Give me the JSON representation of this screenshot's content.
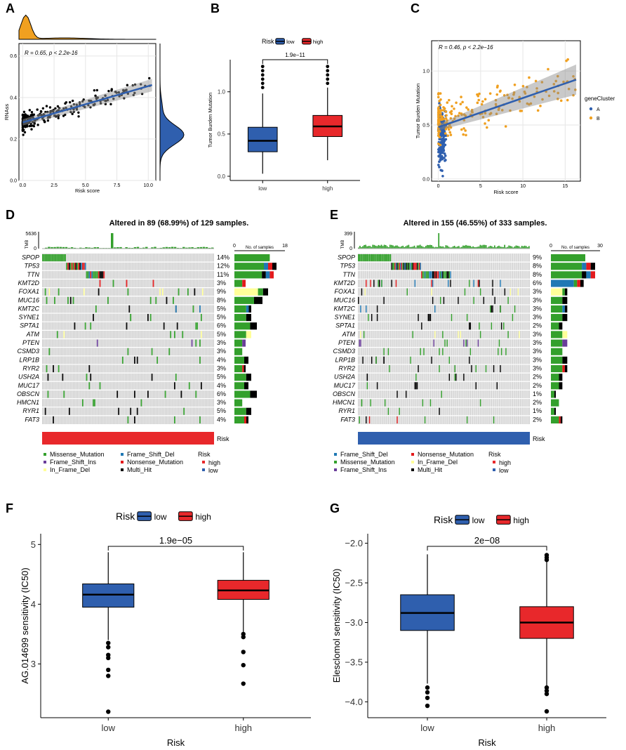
{
  "colors": {
    "low": "#2f5fae",
    "high": "#e8282b",
    "orange": "#f0a020",
    "missense": "#33a02c",
    "frameshift_del": "#1f78b4",
    "frameshift_ins": "#6a3d9a",
    "inframe_del": "#ffff99",
    "nonsense": "#e31a1c",
    "multihit": "#000000",
    "grey": "#d0d0d0"
  },
  "chart_data": [
    {
      "panel": "A",
      "type": "scatter",
      "xlabel": "Risk score",
      "ylabel": "RNAss",
      "annotation": "R = 0.65, p < 2.2e-16",
      "xticks": [
        "0.0",
        "2.5",
        "5.0",
        "7.5",
        "10.0"
      ],
      "xlim": [
        -0.3,
        10.6
      ],
      "yticks": [
        "0.0",
        "0.2",
        "0.4",
        "0.6"
      ],
      "ylim": [
        0,
        0.66
      ],
      "fit": {
        "x": [
          0,
          10.3
        ],
        "y": [
          0.28,
          0.46
        ]
      }
    },
    {
      "panel": "B",
      "type": "box",
      "legend_title": "Risk",
      "legend": [
        "low",
        "high"
      ],
      "ylabel": "Tumor Burden Mutation",
      "pvalue": "1.9e−11",
      "categories": [
        "low",
        "high"
      ],
      "yticks": [
        "0.0",
        "0.5",
        "1.0"
      ],
      "ylim": [
        -0.05,
        1.38
      ],
      "boxes": [
        {
          "name": "low",
          "whisker_low": 0.03,
          "q1": 0.29,
          "median": 0.42,
          "q3": 0.58,
          "whisker_high": 0.98,
          "outliers": [
            1.05,
            1.1,
            1.15,
            1.2,
            1.25,
            1.3
          ]
        },
        {
          "name": "high",
          "whisker_low": 0.19,
          "q1": 0.47,
          "median": 0.59,
          "q3": 0.72,
          "whisker_high": 1.05,
          "outliers": [
            1.1,
            1.15,
            1.2,
            1.25,
            1.3
          ]
        }
      ]
    },
    {
      "panel": "C",
      "type": "scatter",
      "xlabel": "Risk score",
      "ylabel": "Tumor Burden Mutation",
      "annotation": "R = 0.46, p < 2.2e−16",
      "legend_title": "geneCluster",
      "legend": [
        "A",
        "B"
      ],
      "xticks": [
        "0",
        "5",
        "10",
        "15"
      ],
      "xlim": [
        -0.8,
        16.8
      ],
      "yticks": [
        "0.0",
        "0.5",
        "1.0"
      ],
      "ylim": [
        -0.02,
        1.28
      ],
      "fit": {
        "x": [
          0,
          16.3
        ],
        "y": [
          0.48,
          0.92
        ]
      }
    },
    {
      "panel": "D",
      "type": "oncoplot",
      "title": "Altered in 89 (68.99%) of 129 samples.",
      "tmb_label": "TMB",
      "tmb_max": "5636",
      "tmb_min": "0",
      "samples_axis_label": "No. of samples",
      "samples_axis": [
        "0",
        "18"
      ],
      "genes": [
        "SPOP",
        "TP53",
        "TTN",
        "KMT2D",
        "FOXA1",
        "MUC16",
        "KMT2C",
        "SYNE1",
        "SPTA1",
        "ATM",
        "PTEN",
        "CSMD3",
        "LRP1B",
        "RYR2",
        "USH2A",
        "MUC17",
        "OBSCN",
        "HMCN1",
        "RYR1",
        "FAT3"
      ],
      "pct": [
        "14%",
        "12%",
        "11%",
        "3%",
        "9%",
        "8%",
        "5%",
        "5%",
        "6%",
        "5%",
        "3%",
        "3%",
        "4%",
        "3%",
        "5%",
        "4%",
        "6%",
        "3%",
        "5%",
        "4%"
      ],
      "risk_label": "Risk",
      "legend": [
        "Missense_Mutation",
        "Frame_Shift_Del",
        "Frame_Shift_Ins",
        "Nonsense_Mutation",
        "In_Frame_Del",
        "Multi_Hit"
      ],
      "legend_risk_title": "Risk",
      "legend_risk": [
        "high",
        "low"
      ]
    },
    {
      "panel": "E",
      "type": "oncoplot",
      "title": "Altered in 155 (46.55%) of 333 samples.",
      "tmb_label": "TMB",
      "tmb_max": "399",
      "tmb_min": "0",
      "samples_axis_label": "No. of samples",
      "samples_axis": [
        "0",
        "30"
      ],
      "genes": [
        "SPOP",
        "TP53",
        "TTN",
        "KMT2D",
        "FOXA1",
        "MUC16",
        "KMT2C",
        "SYNE1",
        "SPTA1",
        "ATM",
        "PTEN",
        "CSMD3",
        "LRP1B",
        "RYR2",
        "USH2A",
        "MUC17",
        "OBSCN",
        "HMCN1",
        "RYR1",
        "FAT3"
      ],
      "pct": [
        "9%",
        "8%",
        "8%",
        "6%",
        "3%",
        "3%",
        "3%",
        "3%",
        "2%",
        "3%",
        "3%",
        "3%",
        "3%",
        "3%",
        "2%",
        "2%",
        "1%",
        "2%",
        "1%",
        "2%"
      ],
      "risk_label": "Risk",
      "legend": [
        "Frame_Shift_Del",
        "Nonsense_Mutation",
        "Missense_Mutation",
        "In_Frame_Del",
        "Frame_Shift_Ins",
        "Multi_Hit"
      ],
      "legend_risk_title": "Risk",
      "legend_risk": [
        "high",
        "low"
      ]
    },
    {
      "panel": "F",
      "type": "box",
      "legend_title": "Risk",
      "legend": [
        "low",
        "high"
      ],
      "xlabel": "Risk",
      "ylabel": "AG.014699 sensitivity (IC50)",
      "pvalue": "1.9e−05",
      "categories": [
        "low",
        "high"
      ],
      "yticks": [
        "3",
        "4",
        "5"
      ],
      "ylim": [
        2.1,
        5.18
      ],
      "boxes": [
        {
          "name": "low",
          "whisker_low": 3.4,
          "q1": 3.95,
          "median": 4.16,
          "q3": 4.34,
          "whisker_high": 4.87,
          "outliers": [
            3.35,
            3.28,
            3.15,
            3.1,
            2.9,
            2.8,
            2.2
          ]
        },
        {
          "name": "high",
          "whisker_low": 3.5,
          "q1": 4.08,
          "median": 4.23,
          "q3": 4.4,
          "whisker_high": 4.87,
          "outliers": [
            3.5,
            3.45,
            3.2,
            2.98,
            2.67
          ]
        }
      ]
    },
    {
      "panel": "G",
      "type": "box",
      "legend_title": "Risk",
      "legend": [
        "low",
        "high"
      ],
      "xlabel": "Risk",
      "ylabel": "Elesclomol sensitivity (IC50)",
      "pvalue": "2e−08",
      "categories": [
        "low",
        "high"
      ],
      "yticks": [
        "−2.0",
        "−2.5",
        "−3.0",
        "−3.5",
        "−4.0"
      ],
      "ylim": [
        -4.2,
        -1.88
      ],
      "boxes": [
        {
          "name": "low",
          "whisker_low": -3.77,
          "q1": -3.1,
          "median": -2.88,
          "q3": -2.65,
          "whisker_high": -2.14,
          "outliers": [
            -3.82,
            -3.88,
            -3.95,
            -4.05
          ]
        },
        {
          "name": "high",
          "whisker_low": -3.8,
          "q1": -3.2,
          "median": -3.0,
          "q3": -2.8,
          "whisker_high": -2.19,
          "outliers": [
            -2.15,
            -2.18,
            -2.21,
            -3.82,
            -3.86,
            -3.9,
            -4.12
          ]
        }
      ]
    }
  ]
}
